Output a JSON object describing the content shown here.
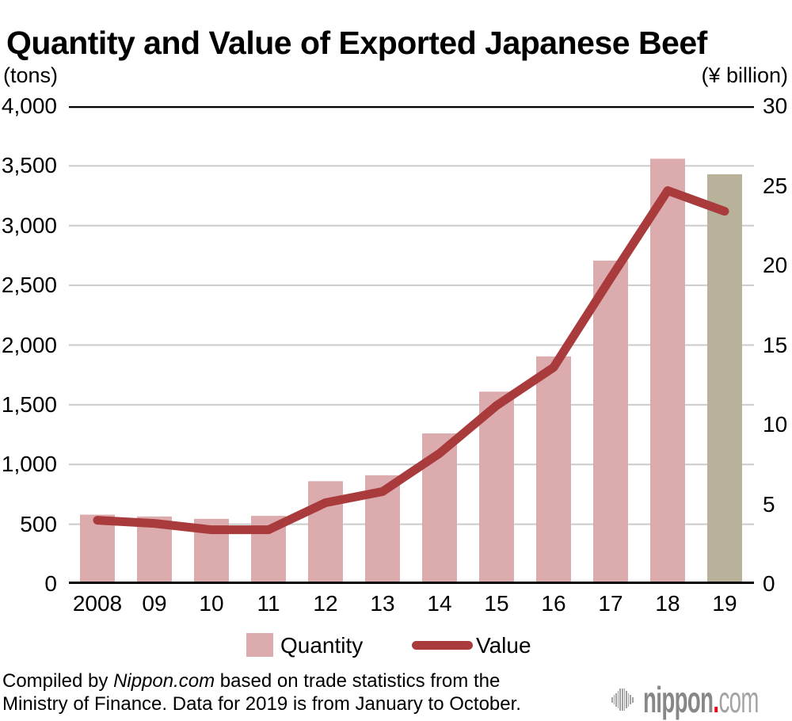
{
  "title": "Quantity and Value of Exported Japanese Beef",
  "chart_data": {
    "type": "bar+line",
    "categories": [
      "2008",
      "09",
      "10",
      "11",
      "12",
      "13",
      "14",
      "15",
      "16",
      "17",
      "18",
      "19"
    ],
    "series": [
      {
        "name": "Quantity",
        "type": "bar",
        "axis": "left",
        "unit": "tons",
        "values": [
          580,
          565,
          545,
          570,
          860,
          910,
          1260,
          1610,
          1905,
          2707,
          3560,
          3430
        ]
      },
      {
        "name": "Value",
        "type": "line",
        "axis": "right",
        "unit": "¥ billion",
        "values": [
          4.0,
          3.8,
          3.4,
          3.4,
          5.1,
          5.8,
          8.2,
          11.2,
          13.6,
          19.2,
          24.7,
          23.4
        ]
      }
    ],
    "left_axis": {
      "unit_label": "(tons)",
      "min": 0,
      "max": 4000,
      "tick_step": 500,
      "tick_labels": [
        "4,000",
        "3,500",
        "3,000",
        "2,500",
        "2,000",
        "1,500",
        "1,000",
        "500",
        "0"
      ]
    },
    "right_axis": {
      "unit_label": "(¥ billion)",
      "min": 0,
      "max": 30,
      "tick_step": 5,
      "tick_labels": [
        "30",
        "25",
        "20",
        "15",
        "10",
        "5",
        "0"
      ]
    },
    "grid": "horizontal",
    "legend_position": "bottom",
    "colors": {
      "bar": "#dcabae",
      "bar_final_year": "#b8b29a",
      "line": "#a93b3d",
      "grid": "#cbcbcb",
      "axis": "#000000"
    },
    "notes": "Final bar (19) drawn in olive to mark partial-year data"
  },
  "legend": {
    "quantity_label": "Quantity",
    "value_label": "Value"
  },
  "footer": {
    "prefix": "Compiled by ",
    "brand": "Nippon.com",
    "line1_rest": " based on trade statistics from the",
    "line2": "Ministry of Finance. Data for 2019 is from January to October."
  },
  "logo": {
    "name": "nippon",
    "dot": ".",
    "tld": "com",
    "icon": "soundwave-icon",
    "colors": {
      "name": "#878787",
      "dot": "#e60012",
      "tld": "#a3a3a3"
    }
  }
}
